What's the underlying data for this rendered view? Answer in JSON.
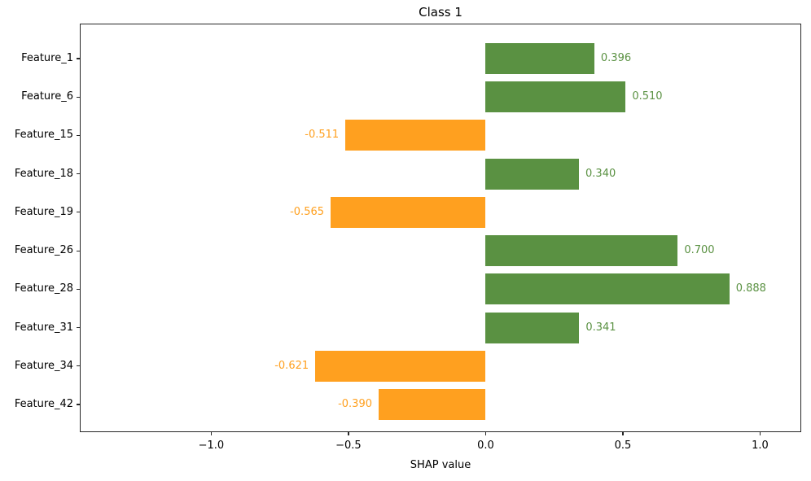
{
  "chart_data": {
    "type": "bar",
    "orientation": "horizontal",
    "title": "Class 1",
    "xlabel": "SHAP value",
    "ylabel": "",
    "categories": [
      "Feature_1",
      "Feature_6",
      "Feature_15",
      "Feature_18",
      "Feature_19",
      "Feature_26",
      "Feature_28",
      "Feature_31",
      "Feature_34",
      "Feature_42"
    ],
    "values": [
      0.396,
      0.51,
      -0.511,
      0.34,
      -0.565,
      0.7,
      0.888,
      0.341,
      -0.621,
      -0.39
    ],
    "value_labels": [
      "0.396",
      "0.510",
      "-0.511",
      "0.340",
      "-0.565",
      "0.700",
      "0.888",
      "0.341",
      "-0.621",
      "-0.390"
    ],
    "positive_color": "#5a9142",
    "negative_color": "#ffa01f",
    "axis_color": "#262626",
    "text_color": "#000000",
    "xlim": [
      -1.479,
      1.15
    ],
    "xticks": {
      "values": [
        -1.0,
        -0.5,
        0.0,
        0.5,
        1.0
      ],
      "labels": [
        "−1.0",
        "−0.5",
        "0.0",
        "0.5",
        "1.0"
      ]
    },
    "grid": false,
    "legend_position": "none"
  }
}
